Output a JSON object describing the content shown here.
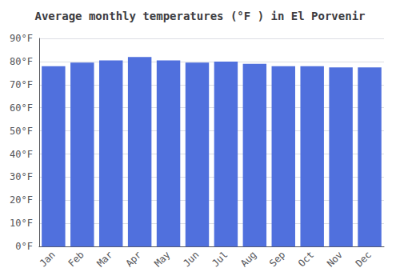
{
  "chart_data": {
    "type": "bar",
    "title": "Average monthly temperatures (°F ) in El Porvenir",
    "categories": [
      "Jan",
      "Feb",
      "Mar",
      "Apr",
      "May",
      "Jun",
      "Jul",
      "Aug",
      "Sep",
      "Oct",
      "Nov",
      "Dec"
    ],
    "values": [
      78,
      79.5,
      80.5,
      82,
      80.5,
      79.5,
      80,
      79,
      78,
      78,
      77.5,
      77.5
    ],
    "ylim": [
      0,
      90
    ],
    "yticks": [
      {
        "value": 0,
        "label": "0°F"
      },
      {
        "value": 10,
        "label": "10°F"
      },
      {
        "value": 20,
        "label": "20°F"
      },
      {
        "value": 30,
        "label": "30°F"
      },
      {
        "value": 40,
        "label": "40°F"
      },
      {
        "value": 50,
        "label": "50°F"
      },
      {
        "value": 60,
        "label": "60°F"
      },
      {
        "value": 70,
        "label": "70°F"
      },
      {
        "value": 80,
        "label": "80°F"
      },
      {
        "value": 90,
        "label": "90°F"
      }
    ],
    "grid": true
  }
}
